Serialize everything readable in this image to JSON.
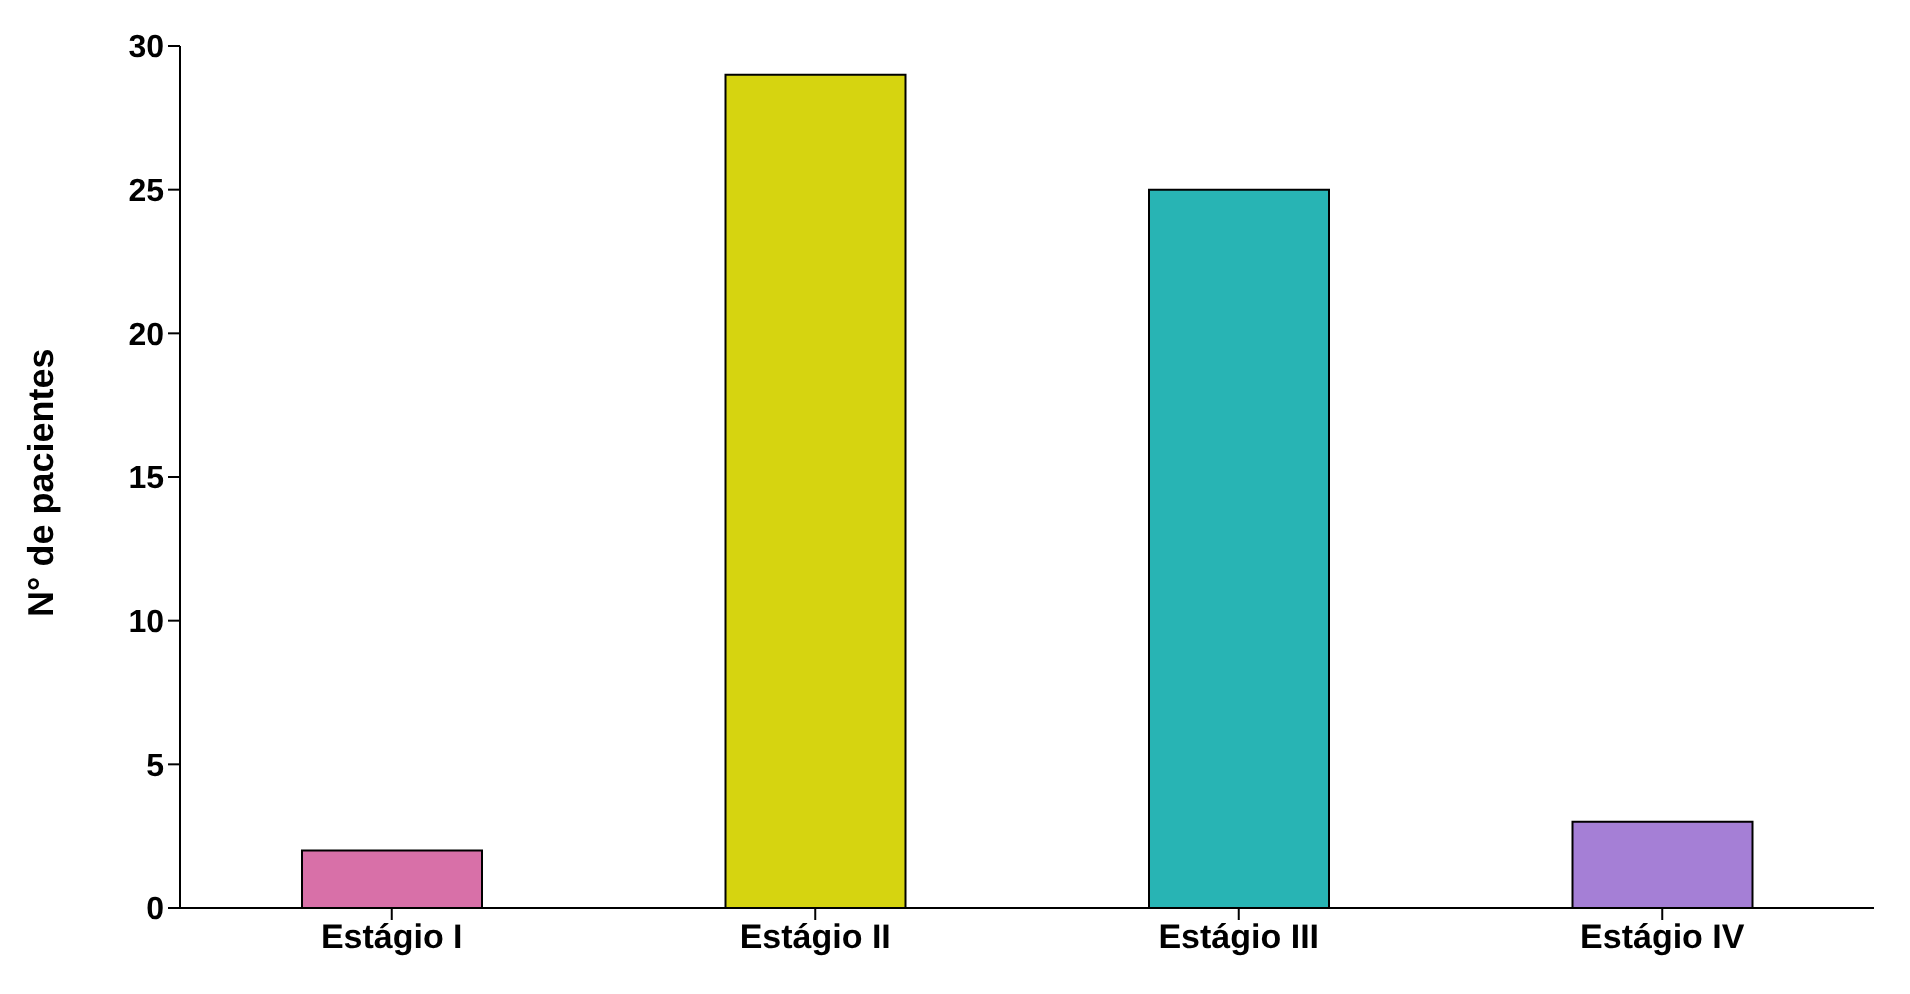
{
  "chart_data": {
    "type": "bar",
    "ylabel": "N° de pacientes",
    "categories": [
      "Estágio I",
      "Estágio II",
      "Estágio III",
      "Estágio IV"
    ],
    "values": [
      2,
      29,
      25,
      3
    ],
    "colors": [
      "#d870a8",
      "#d6d410",
      "#28b4b4",
      "#a57fd6"
    ],
    "ylim": [
      0,
      30
    ],
    "yticks": [
      0,
      5,
      10,
      15,
      20,
      25,
      30
    ],
    "grid": false,
    "legend": false
  }
}
